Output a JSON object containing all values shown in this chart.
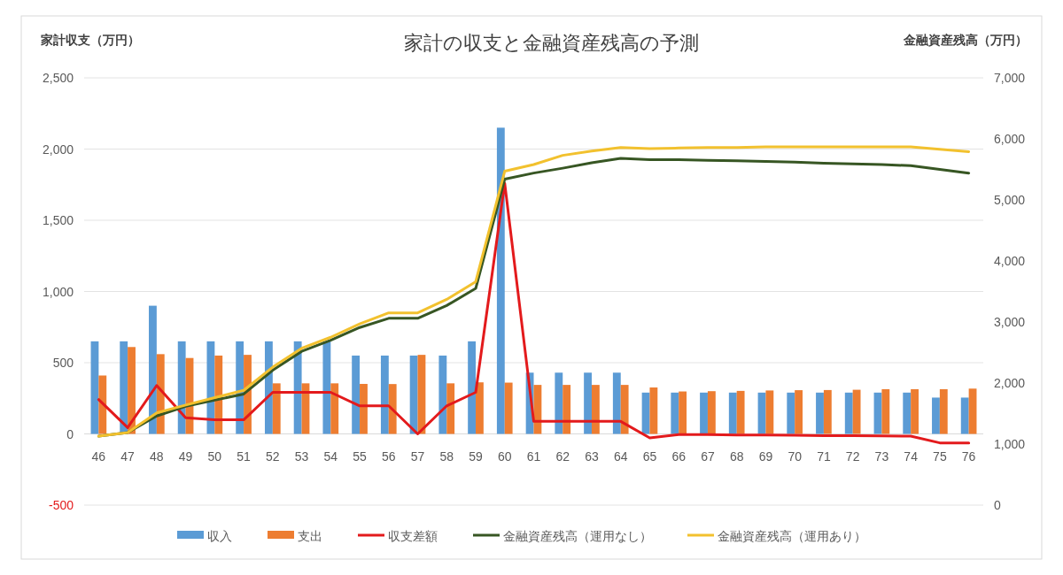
{
  "chart_data": {
    "type": "bar",
    "title": "家計の収支と金融資産残高の予測",
    "ylabel": "家計収支（万円）",
    "y2label": "金融資産残高（万円）",
    "categories": [
      "46",
      "47",
      "48",
      "49",
      "50",
      "51",
      "52",
      "53",
      "54",
      "55",
      "56",
      "57",
      "58",
      "59",
      "60",
      "61",
      "62",
      "63",
      "64",
      "65",
      "66",
      "67",
      "68",
      "69",
      "70",
      "71",
      "72",
      "73",
      "74",
      "75",
      "76"
    ],
    "series": [
      {
        "name": "収入",
        "color": "#5b9bd5",
        "values": [
          650,
          650,
          900,
          650,
          650,
          650,
          650,
          650,
          650,
          550,
          550,
          550,
          550,
          650,
          2150,
          430,
          430,
          430,
          430,
          290,
          290,
          290,
          290,
          290,
          290,
          290,
          290,
          290,
          290,
          255,
          255
        ]
      },
      {
        "name": "支出",
        "color": "#ed7d31",
        "values": [
          410,
          610,
          560,
          533,
          550,
          555,
          355,
          355,
          355,
          351,
          350,
          555,
          355,
          362,
          360,
          344,
          344,
          344,
          344,
          326,
          298,
          300,
          302,
          305,
          307,
          308,
          310,
          314,
          314,
          314,
          318
        ]
      },
      {
        "name": "収支差額",
        "type": "line",
        "color": "#e31a1c",
        "values": [
          241,
          44,
          340,
          114,
          99,
          99,
          292,
          292,
          292,
          197,
          197,
          0,
          197,
          292,
          1760,
          88,
          88,
          88,
          88,
          -28,
          -5,
          -5,
          -8,
          -8,
          -10,
          -12,
          -12,
          -14,
          -16,
          -63,
          -63
        ]
      },
      {
        "name": "金融資産残高（運用なし）",
        "type": "line",
        "axis": "y2",
        "color": "#375623",
        "values": [
          1130,
          1190,
          1460,
          1620,
          1720,
          1820,
          2210,
          2520,
          2700,
          2910,
          3060,
          3060,
          3270,
          3550,
          5340,
          5440,
          5520,
          5610,
          5680,
          5660,
          5660,
          5650,
          5640,
          5630,
          5620,
          5600,
          5590,
          5580,
          5560,
          5500,
          5440
        ]
      },
      {
        "name": "金融資産残高（運用あり）",
        "type": "line",
        "axis": "y2",
        "color": "#f2c12e",
        "values": [
          1130,
          1190,
          1510,
          1640,
          1760,
          1880,
          2260,
          2570,
          2750,
          2970,
          3150,
          3150,
          3370,
          3660,
          5470,
          5580,
          5730,
          5800,
          5860,
          5840,
          5850,
          5860,
          5860,
          5870,
          5870,
          5870,
          5870,
          5870,
          5870,
          5830,
          5790
        ]
      }
    ],
    "ylim": [
      -500,
      2500
    ],
    "yticks": [
      {
        "value": -500,
        "label": "-500"
      },
      0,
      {
        "value": 500,
        "label": "500"
      },
      {
        "value": 1000,
        "label": "1,000"
      },
      {
        "value": 1500,
        "label": "1,500"
      },
      {
        "value": 2000,
        "label": "2,000"
      },
      {
        "value": 2500,
        "label": "2,500"
      }
    ],
    "y2lim": [
      0,
      7000
    ],
    "y2ticks": [
      0,
      {
        "value": 1000,
        "label": "1,000"
      },
      {
        "value": 2000,
        "label": "2,000"
      },
      {
        "value": 3000,
        "label": "3,000"
      },
      {
        "value": 4000,
        "label": "4,000"
      },
      {
        "value": 5000,
        "label": "5,000"
      },
      {
        "value": 6000,
        "label": "6,000"
      },
      {
        "value": 7000,
        "label": "7,000"
      }
    ],
    "grid": "y",
    "legend": "bottom",
    "marker": "none",
    "line_style": "solid"
  }
}
